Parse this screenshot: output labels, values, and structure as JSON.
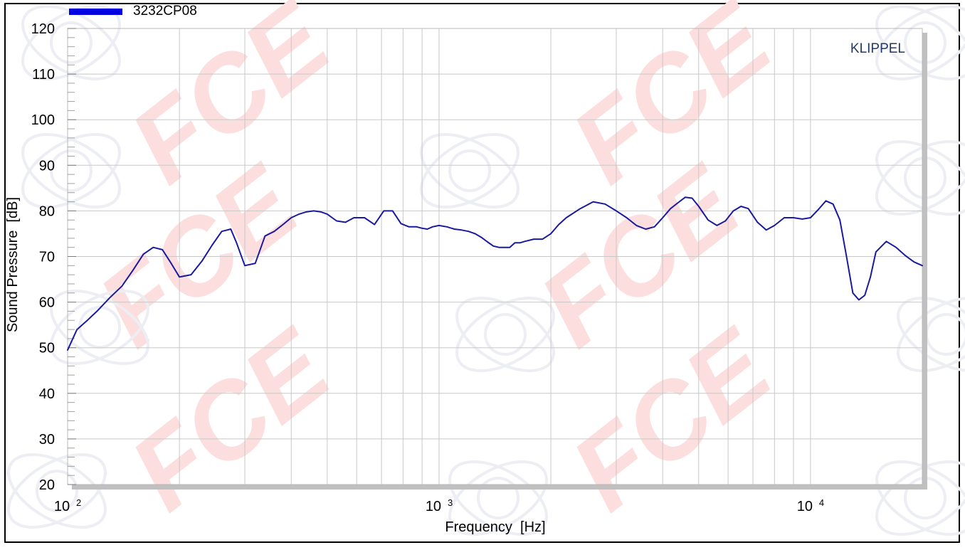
{
  "chart_data": {
    "type": "line",
    "title": "",
    "xlabel": "Frequency  [Hz]",
    "ylabel": "Sound Pressure  [dB]",
    "x_scale": "log",
    "xlim": [
      100,
      20000
    ],
    "ylim": [
      20,
      120
    ],
    "y_ticks": [
      "20",
      "30",
      "40",
      "50",
      "60",
      "70",
      "80",
      "90",
      "100",
      "110",
      "120"
    ],
    "x_ticks": [
      {
        "base": "10",
        "exp": "2",
        "value": 100
      },
      {
        "base": "10",
        "exp": "3",
        "value": 1000
      },
      {
        "base": "10",
        "exp": "4",
        "value": 10000
      }
    ],
    "grid": true,
    "legend_position": "top-left",
    "brand_label": "KLIPPEL",
    "watermark_text": "FCE",
    "series": [
      {
        "name": "3232CP08",
        "color": "#1a1aa0",
        "legend_color": "#0000e0",
        "x": [
          100,
          106,
          113,
          120,
          130,
          140,
          150,
          160,
          170,
          180,
          190,
          200,
          215,
          230,
          245,
          260,
          275,
          285,
          300,
          320,
          340,
          360,
          380,
          400,
          420,
          440,
          460,
          480,
          500,
          530,
          560,
          590,
          630,
          670,
          710,
          750,
          790,
          830,
          870,
          900,
          930,
          960,
          1000,
          1050,
          1100,
          1150,
          1200,
          1250,
          1300,
          1350,
          1400,
          1450,
          1500,
          1550,
          1600,
          1650,
          1700,
          1800,
          1900,
          2000,
          2100,
          2200,
          2400,
          2600,
          2800,
          3000,
          3200,
          3400,
          3600,
          3800,
          4000,
          4200,
          4400,
          4600,
          4800,
          5000,
          5300,
          5600,
          5900,
          6200,
          6500,
          6800,
          7200,
          7600,
          8000,
          8500,
          9000,
          9500,
          10000,
          10500,
          11000,
          11500,
          12000,
          12500,
          13000,
          13500,
          14000,
          14500,
          15000,
          16000,
          17000,
          18000,
          19000,
          20000
        ],
        "values": [
          49.5,
          54,
          56,
          58,
          61,
          63.5,
          67,
          70.5,
          72,
          71.5,
          68.5,
          65.5,
          66,
          69,
          72.5,
          75.5,
          76,
          73,
          68,
          68.5,
          74.5,
          75.5,
          77,
          78.5,
          79.3,
          79.8,
          80,
          79.8,
          79.3,
          77.8,
          77.5,
          78.5,
          78.5,
          77,
          80,
          80,
          77.2,
          76.5,
          76.5,
          76.2,
          76,
          76.5,
          76.8,
          76.5,
          76,
          75.8,
          75.5,
          75,
          74.2,
          73.2,
          72.3,
          72,
          72,
          72,
          73,
          73,
          73.3,
          73.8,
          73.8,
          75,
          77,
          78.5,
          80.5,
          82,
          81.5,
          80,
          78.5,
          76.8,
          76,
          76.5,
          78.5,
          80.5,
          81.8,
          83,
          82.8,
          81,
          78,
          76.8,
          77.8,
          80,
          81,
          80.5,
          77.5,
          75.8,
          76.8,
          78.5,
          78.5,
          78.2,
          78.5,
          80.3,
          82.2,
          81.5,
          78,
          70,
          62,
          60.5,
          61.5,
          65.5,
          71,
          73.3,
          72,
          70.2,
          68.8,
          68
        ]
      }
    ]
  }
}
